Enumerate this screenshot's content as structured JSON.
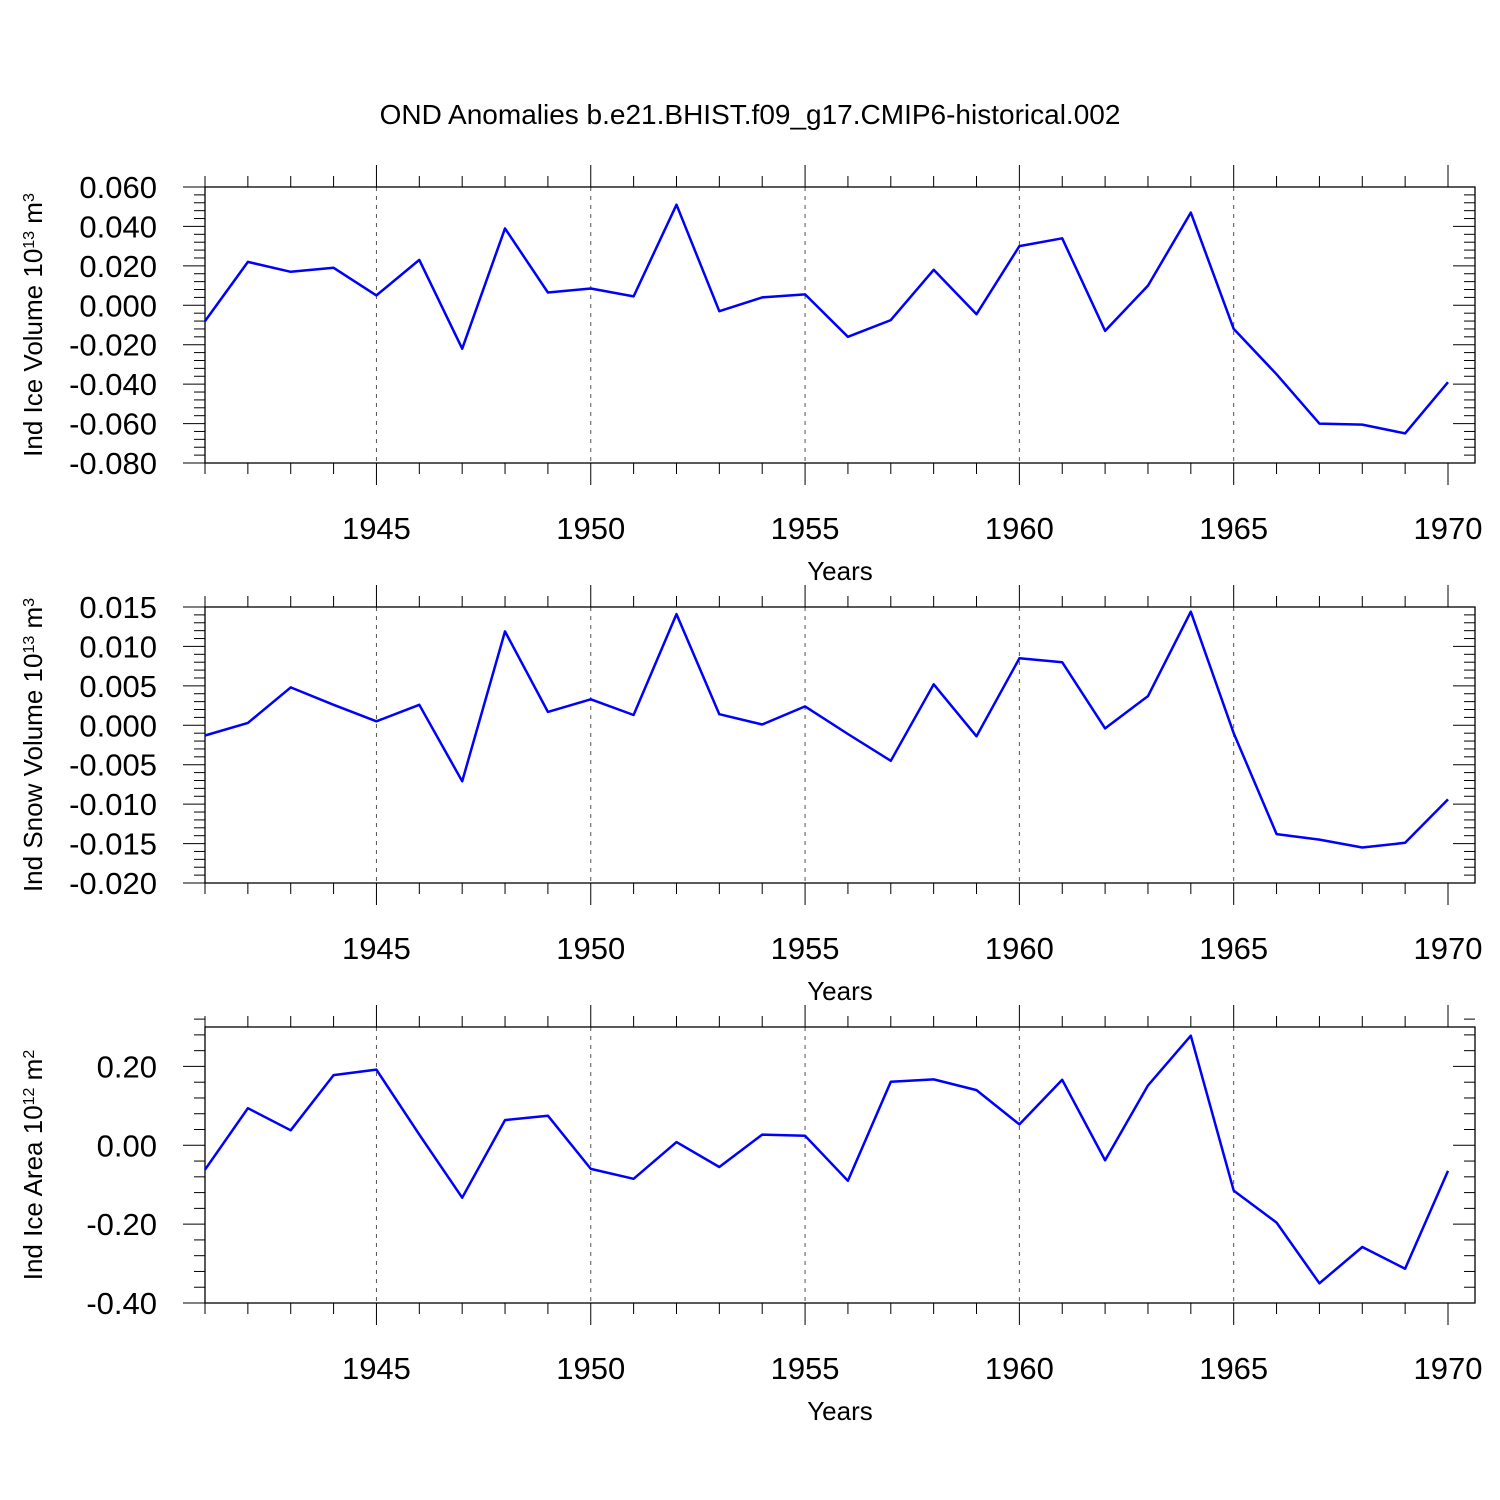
{
  "title": "OND Anomalies b.e21.BHIST.f09_g17.CMIP6-historical.002",
  "colors": {
    "line": "#0000ff",
    "axis": "#000000",
    "grid": "#555555"
  },
  "chart_data": [
    {
      "type": "line",
      "ylabel": {
        "base": "Ind Ice Volume 10",
        "exp": "13",
        "unit": " m",
        "unit_exp": "3"
      },
      "xlabel": "Years",
      "xlim": [
        1941,
        1970
      ],
      "ylim": [
        -0.08,
        0.06
      ],
      "yticks": [
        -0.08,
        -0.06,
        -0.04,
        -0.02,
        0.0,
        0.02,
        0.04,
        0.06
      ],
      "ytick_labels": [
        "-0.080",
        "-0.060",
        "-0.040",
        "-0.020",
        "0.000",
        "0.020",
        "0.040",
        "0.060"
      ],
      "xticks": [
        1945,
        1950,
        1955,
        1960,
        1965,
        1970
      ],
      "xtick_labels": [
        "1945",
        "1950",
        "1955",
        "1960",
        "1965",
        "1970"
      ],
      "grid": "vertical dashed at major x ticks",
      "x": [
        1941,
        1942,
        1943,
        1944,
        1945,
        1946,
        1947,
        1948,
        1949,
        1950,
        1951,
        1952,
        1953,
        1954,
        1955,
        1956,
        1957,
        1958,
        1959,
        1960,
        1961,
        1962,
        1963,
        1964,
        1965,
        1966,
        1967,
        1968,
        1969,
        1970
      ],
      "values": [
        -0.008,
        0.022,
        0.017,
        0.019,
        0.005,
        0.023,
        -0.022,
        0.039,
        0.0065,
        0.0085,
        0.0045,
        0.051,
        -0.003,
        0.004,
        0.0055,
        -0.016,
        -0.0075,
        0.018,
        -0.0045,
        0.03,
        0.034,
        -0.013,
        0.01,
        0.047,
        -0.012,
        -0.035,
        -0.06,
        -0.0605,
        -0.065,
        -0.039
      ]
    },
    {
      "type": "line",
      "ylabel": {
        "base": "Ind Snow Volume 10",
        "exp": "13",
        "unit": " m",
        "unit_exp": "3"
      },
      "xlabel": "Years",
      "xlim": [
        1941,
        1970
      ],
      "ylim": [
        -0.02,
        0.015
      ],
      "yticks": [
        -0.02,
        -0.015,
        -0.01,
        -0.005,
        0.0,
        0.005,
        0.01,
        0.015
      ],
      "ytick_labels": [
        "-0.020",
        "-0.015",
        "-0.010",
        "-0.005",
        "0.000",
        "0.005",
        "0.010",
        "0.015"
      ],
      "xticks": [
        1945,
        1950,
        1955,
        1960,
        1965,
        1970
      ],
      "xtick_labels": [
        "1945",
        "1950",
        "1955",
        "1960",
        "1965",
        "1970"
      ],
      "grid": "vertical dashed at major x ticks",
      "x": [
        1941,
        1942,
        1943,
        1944,
        1945,
        1946,
        1947,
        1948,
        1949,
        1950,
        1951,
        1952,
        1953,
        1954,
        1955,
        1956,
        1957,
        1958,
        1959,
        1960,
        1961,
        1962,
        1963,
        1964,
        1965,
        1966,
        1967,
        1968,
        1969,
        1970
      ],
      "values": [
        -0.0013,
        0.0003,
        0.0048,
        0.0026,
        0.0005,
        0.0026,
        -0.0071,
        0.0119,
        0.0017,
        0.0033,
        0.0013,
        0.0141,
        0.0014,
        0.0001,
        0.0024,
        -0.0011,
        -0.0045,
        0.0052,
        -0.0014,
        0.0085,
        0.008,
        -0.0004,
        0.0037,
        0.0144,
        -0.001,
        -0.0138,
        -0.0145,
        -0.0155,
        -0.0149,
        -0.0094
      ]
    },
    {
      "type": "line",
      "ylabel": {
        "base": "Ind Ice Area 10",
        "exp": "12",
        "unit": " m",
        "unit_exp": "2"
      },
      "xlabel": "Years",
      "xlim": [
        1941,
        1970
      ],
      "ylim": [
        -0.4,
        0.3
      ],
      "yticks": [
        -0.4,
        -0.2,
        0.0,
        0.2
      ],
      "ytick_labels": [
        "-0.40",
        "-0.20",
        "0.00",
        "0.20"
      ],
      "xticks": [
        1945,
        1950,
        1955,
        1960,
        1965,
        1970
      ],
      "xtick_labels": [
        "1945",
        "1950",
        "1955",
        "1960",
        "1965",
        "1970"
      ],
      "grid": "vertical dashed at major x ticks",
      "x": [
        1941,
        1942,
        1943,
        1944,
        1945,
        1946,
        1947,
        1948,
        1949,
        1950,
        1951,
        1952,
        1953,
        1954,
        1955,
        1956,
        1957,
        1958,
        1959,
        1960,
        1961,
        1962,
        1963,
        1964,
        1965,
        1966,
        1967,
        1968,
        1969,
        1970
      ],
      "values": [
        -0.062,
        0.094,
        0.038,
        0.178,
        0.192,
        0.027,
        -0.133,
        0.064,
        0.075,
        -0.06,
        -0.085,
        0.008,
        -0.055,
        0.027,
        0.024,
        -0.09,
        0.161,
        0.167,
        0.14,
        0.053,
        0.166,
        -0.038,
        0.152,
        0.278,
        -0.115,
        -0.196,
        -0.35,
        -0.258,
        -0.313,
        -0.065
      ]
    }
  ]
}
